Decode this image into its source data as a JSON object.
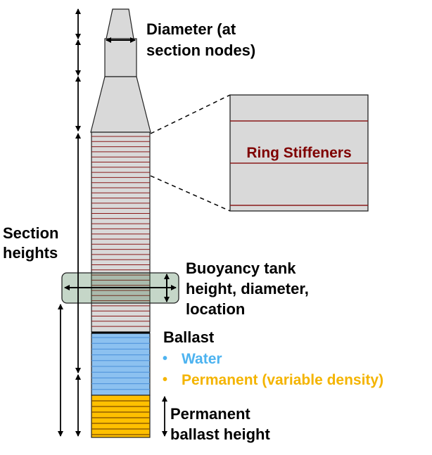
{
  "labels": {
    "diameter_line1": "Diameter (at",
    "diameter_line2": "section nodes)",
    "ring_stiffeners": "Ring Stiffeners",
    "section_line1": "Section",
    "section_line2": "heights",
    "buoyancy_line1": "Buoyancy tank",
    "buoyancy_line2": "height, diameter,",
    "buoyancy_line3": "location",
    "ballast_title": "Ballast",
    "ballast_water": "Water",
    "ballast_permanent": "Permanent (variable density)",
    "perm_height_line1": "Permanent",
    "perm_height_line2": "ballast height"
  },
  "bullets": {
    "water": "•",
    "permanent": "•"
  },
  "colors": {
    "hull_fill": "#d9d9d9",
    "hull_stroke": "#222222",
    "stiffener": "#8b1a1a",
    "ring_label": "#7f0000",
    "water_fill": "#8cc1f0",
    "water_line": "#4a90d9",
    "water_text": "#4db3f0",
    "perm_fill": "#ffc000",
    "perm_line": "#7a4a00",
    "perm_text": "#f4b400",
    "tank_fill": "#2e6b3b",
    "text": "#000000"
  }
}
